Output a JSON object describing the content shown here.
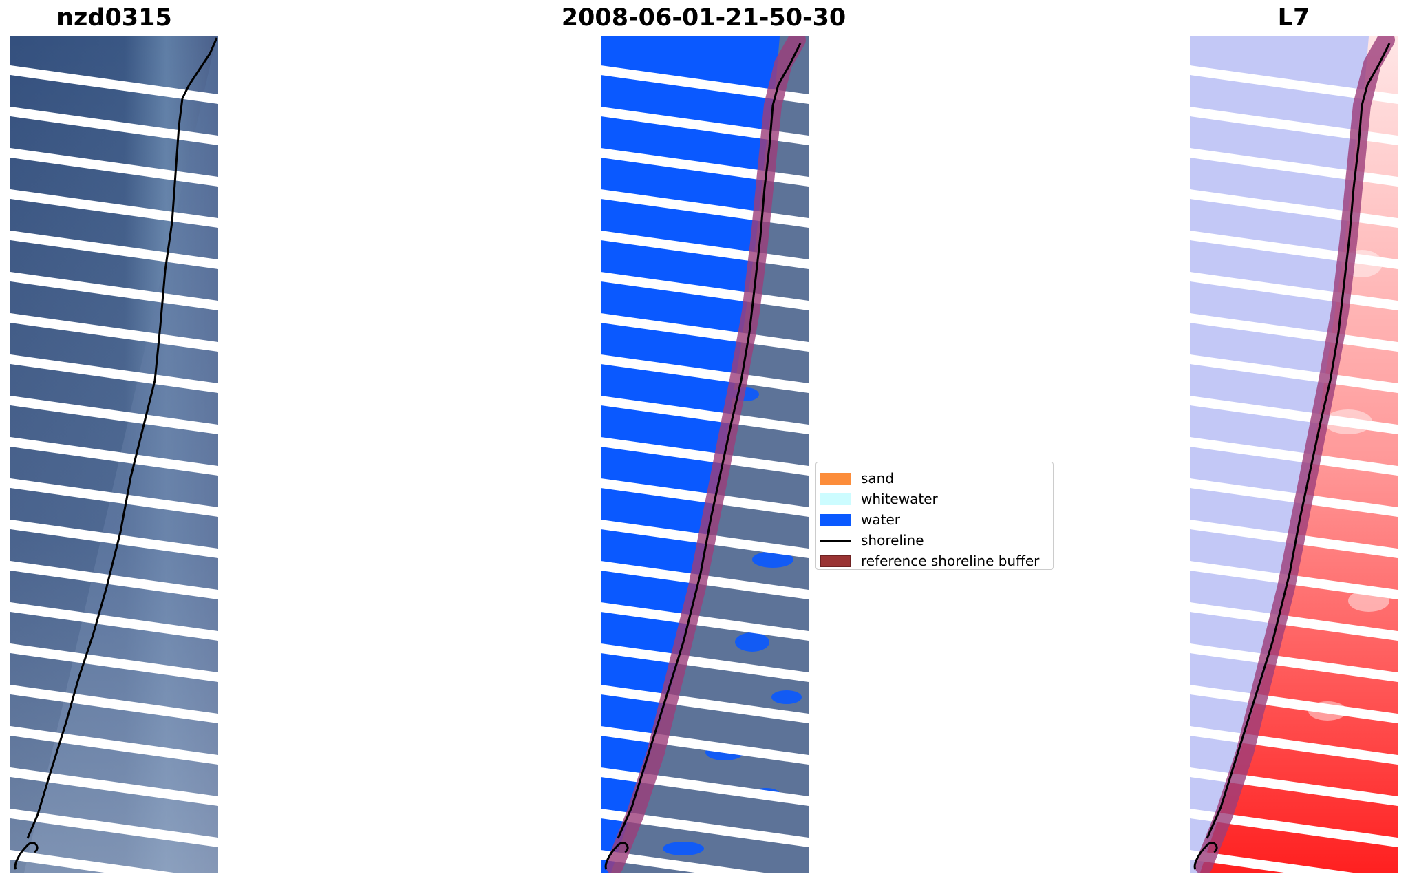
{
  "panels": [
    {
      "title": "nzd0315"
    },
    {
      "title": "2008-06-01-21-50-30"
    },
    {
      "title": "L7"
    }
  ],
  "legend": {
    "items": [
      {
        "label": "sand",
        "color": "#fc8d3b",
        "kind": "patch"
      },
      {
        "label": "whitewater",
        "color": "#ccfcff",
        "kind": "patch"
      },
      {
        "label": "water",
        "color": "#0a59ff",
        "kind": "patch"
      },
      {
        "label": "shoreline",
        "color": "#000000",
        "kind": "line"
      },
      {
        "label": "reference shoreline buffer",
        "color": "#993333",
        "kind": "patch"
      }
    ]
  },
  "colors": {
    "rgb_water_deep": "#34507e",
    "rgb_land": "#5a6f9a",
    "class_water": "#0a59ff",
    "buffer": "#9c3d7a",
    "mndwi_water": "#b9bff5",
    "mndwi_land": "#ff3a3a"
  }
}
